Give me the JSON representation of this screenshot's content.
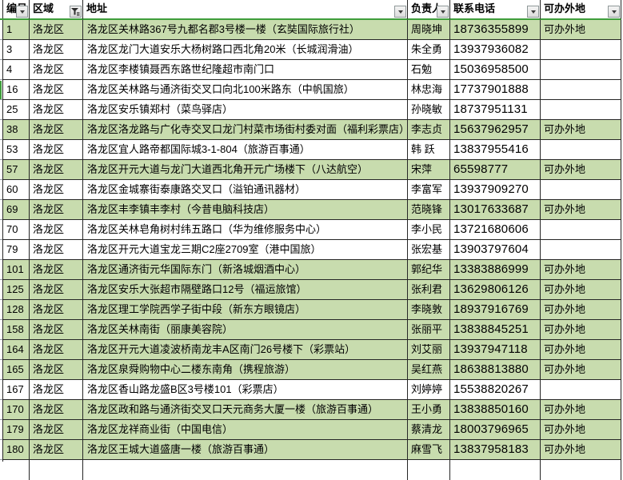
{
  "app": {
    "kind": "spreadsheet-table",
    "language": "zh-CN"
  },
  "colors": {
    "row_highlight": "#c8dcae",
    "header_rule_green": "#3f9e3b",
    "grid_line": "#262626",
    "filter_button_border": "#8f9899"
  },
  "table": {
    "columns": [
      {
        "key": "id",
        "label": "编号",
        "filter_icon": "dropdown"
      },
      {
        "key": "region",
        "label": "区域",
        "filter_icon": "funnel"
      },
      {
        "key": "address",
        "label": "地址",
        "filter_icon": "dropdown"
      },
      {
        "key": "manager",
        "label": "负责人",
        "filter_icon": "dropdown"
      },
      {
        "key": "phone",
        "label": "联系电话",
        "filter_icon": "dropdown"
      },
      {
        "key": "remote",
        "label": "可办外地",
        "filter_icon": "dropdown"
      }
    ],
    "rows": [
      {
        "id": "1",
        "region": "洛龙区",
        "address": "洛龙区关林路367号九都名郡3号楼一楼（玄奘国际旅行社）",
        "manager": "周晓坤",
        "phone": "18736355899",
        "remote": "可办外地",
        "highlight": true
      },
      {
        "id": "3",
        "region": "洛龙区",
        "address": "洛龙区龙门大道安乐大杨树路口西北角20米（长城润滑油）",
        "manager": "朱全勇",
        "phone": "13937936082",
        "remote": "",
        "highlight": false
      },
      {
        "id": "4",
        "region": "洛龙区",
        "address": "洛龙区李楼镇聂西东路世纪隆超市南门口",
        "manager": "石勉",
        "phone": "15036958500",
        "remote": "",
        "highlight": false
      },
      {
        "id": "16",
        "region": "洛龙区",
        "address": "洛龙区关林路与通济街交叉口向北100米路东（中帆国旅）",
        "manager": "林忠海",
        "phone": "17737901888",
        "remote": "",
        "highlight": false
      },
      {
        "id": "25",
        "region": "洛龙区",
        "address": "洛龙区安乐镇郑村（菜鸟驿店）",
        "manager": "孙晓敏",
        "phone": "18737951131",
        "remote": "",
        "highlight": false
      },
      {
        "id": "38",
        "region": "洛龙区",
        "address": "洛龙区洛龙路与广化寺交叉口龙门村菜市场街村委对面（福利彩票店）",
        "manager": "李志贞",
        "phone": "15637962957",
        "remote": "可办外地",
        "highlight": true
      },
      {
        "id": "53",
        "region": "洛龙区",
        "address": "洛龙区宜人路帝都国际城3-1-804（旅游百事通）",
        "manager": "韩 跃",
        "phone": "13837955416",
        "remote": "",
        "highlight": false
      },
      {
        "id": "57",
        "region": "洛龙区",
        "address": "洛龙区开元大道与龙门大道西北角开元广场楼下（八达航空）",
        "manager": "宋萍",
        "phone": "65598777",
        "remote": "可办外地",
        "highlight": true
      },
      {
        "id": "60",
        "region": "洛龙区",
        "address": "洛龙区金城寨街泰康路交叉口（溢铂通讯器材）",
        "manager": "李富军",
        "phone": "13937909270",
        "remote": "",
        "highlight": false
      },
      {
        "id": "69",
        "region": "洛龙区",
        "address": "洛龙区丰李镇丰李村（今昔电脑科技店）",
        "manager": "范晓锋",
        "phone": "13017633687",
        "remote": "可办外地",
        "highlight": true
      },
      {
        "id": "70",
        "region": "洛龙区",
        "address": "洛龙区关林皂角树村纬五路口（华为维修服务中心）",
        "manager": "李小民",
        "phone": "13721680606",
        "remote": "",
        "highlight": false
      },
      {
        "id": "79",
        "region": "洛龙区",
        "address": "洛龙区开元大道宝龙三期C2座2709室（港中国旅）",
        "manager": "张宏基",
        "phone": "13903797604",
        "remote": "",
        "highlight": false
      },
      {
        "id": "101",
        "region": "洛龙区",
        "address": "洛龙区通济街元华国际东门（新洛城烟酒中心）",
        "manager": "郭纪华",
        "phone": "13383886999",
        "remote": "可办外地",
        "highlight": true
      },
      {
        "id": "125",
        "region": "洛龙区",
        "address": "洛龙区安乐大张超市隔壁路口12号（福运旅馆）",
        "manager": "张利君",
        "phone": "13629806126",
        "remote": "可办外地",
        "highlight": true
      },
      {
        "id": "128",
        "region": "洛龙区",
        "address": "洛龙区理工学院西学子街中段（新东方眼镜店）",
        "manager": "李晓敦",
        "phone": "18937916769",
        "remote": "可办外地",
        "highlight": true
      },
      {
        "id": "158",
        "region": "洛龙区",
        "address": "洛龙区关林南街（丽康美容院）",
        "manager": "张丽平",
        "phone": "13838845251",
        "remote": "可办外地",
        "highlight": true
      },
      {
        "id": "164",
        "region": "洛龙区",
        "address": "洛龙区开元大道凌波桥南龙丰A区南门26号楼下（彩票站）",
        "manager": "刘艾丽",
        "phone": "13937947118",
        "remote": "可办外地",
        "highlight": true
      },
      {
        "id": "165",
        "region": "洛龙区",
        "address": "洛龙区泉舜购物中心二楼东南角（携程旅游）",
        "manager": "吴红燕",
        "phone": "18638813880",
        "remote": "可办外地",
        "highlight": true
      },
      {
        "id": "167",
        "region": "洛龙区",
        "address": "洛龙区香山路龙盛B区3号楼101（彩票店）",
        "manager": "刘婷婷",
        "phone": "15538820267",
        "remote": "",
        "highlight": false
      },
      {
        "id": "170",
        "region": "洛龙区",
        "address": "洛龙区政和路与通济街交叉口天元商务大厦一楼（旅游百事通）",
        "manager": "王小勇",
        "phone": "13838850160",
        "remote": "可办外地",
        "highlight": true
      },
      {
        "id": "179",
        "region": "洛龙区",
        "address": "洛龙区龙祥商业街（中国电信）",
        "manager": "蔡清龙",
        "phone": "18003796965",
        "remote": "可办外地",
        "highlight": true
      },
      {
        "id": "180",
        "region": "洛龙区",
        "address": "洛龙区王城大道盛唐一楼（旅游百事通）",
        "manager": "麻雪飞",
        "phone": "13837958183",
        "remote": "可办外地",
        "highlight": true
      }
    ]
  }
}
